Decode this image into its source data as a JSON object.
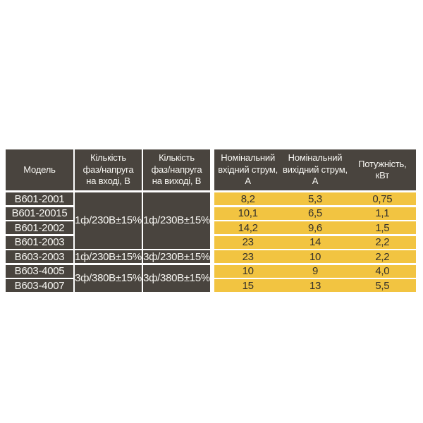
{
  "colors": {
    "cell_dark": "#49443E",
    "band_yellow": "#F2C441",
    "text_on_dark": "#F7F6F2",
    "text_on_yellow": "#33302B",
    "separator": "#FFFFFF"
  },
  "table": {
    "headers": {
      "model": [
        "Модель"
      ],
      "phases_in": [
        "Кількість",
        "фаз/напруга",
        "на вході, В"
      ],
      "phases_out": [
        "Кількість",
        "фаз/напруга",
        "на виході, В"
      ],
      "in_current": [
        "Номінальний",
        "вхідний струм,",
        "А"
      ],
      "out_current": [
        "Номінальний",
        "вихідний струм,",
        "А"
      ],
      "power": [
        "Потужність,",
        "кВт"
      ]
    },
    "input_voltage_groups": [
      {
        "label": "1ф/230В±15%",
        "rows_spanned": 4
      },
      {
        "label": "1ф/230В±15%",
        "rows_spanned": 1
      },
      {
        "label": "3ф/380В±15%",
        "rows_spanned": 2
      }
    ],
    "output_voltage_groups": [
      {
        "label": "1ф/230В±15%",
        "rows_spanned": 4
      },
      {
        "label": "3ф/230В±15%",
        "rows_spanned": 1
      },
      {
        "label": "3ф/380В±15%",
        "rows_spanned": 2
      }
    ],
    "rows": [
      {
        "model": "B601-2001",
        "in_current": "8,2",
        "out_current": "5,3",
        "power": "0,75"
      },
      {
        "model": "B601-20015",
        "in_current": "10,1",
        "out_current": "6,5",
        "power": "1,1"
      },
      {
        "model": "B601-2002",
        "in_current": "14,2",
        "out_current": "9,6",
        "power": "1,5"
      },
      {
        "model": "B601-2003",
        "in_current": "23",
        "out_current": "14",
        "power": "2,2"
      },
      {
        "model": "B603-2003",
        "in_current": "23",
        "out_current": "10",
        "power": "2,2"
      },
      {
        "model": "B603-4005",
        "in_current": "10",
        "out_current": "9",
        "power": "4,0"
      },
      {
        "model": "B603-4007",
        "in_current": "15",
        "out_current": "13",
        "power": "5,5"
      }
    ]
  }
}
